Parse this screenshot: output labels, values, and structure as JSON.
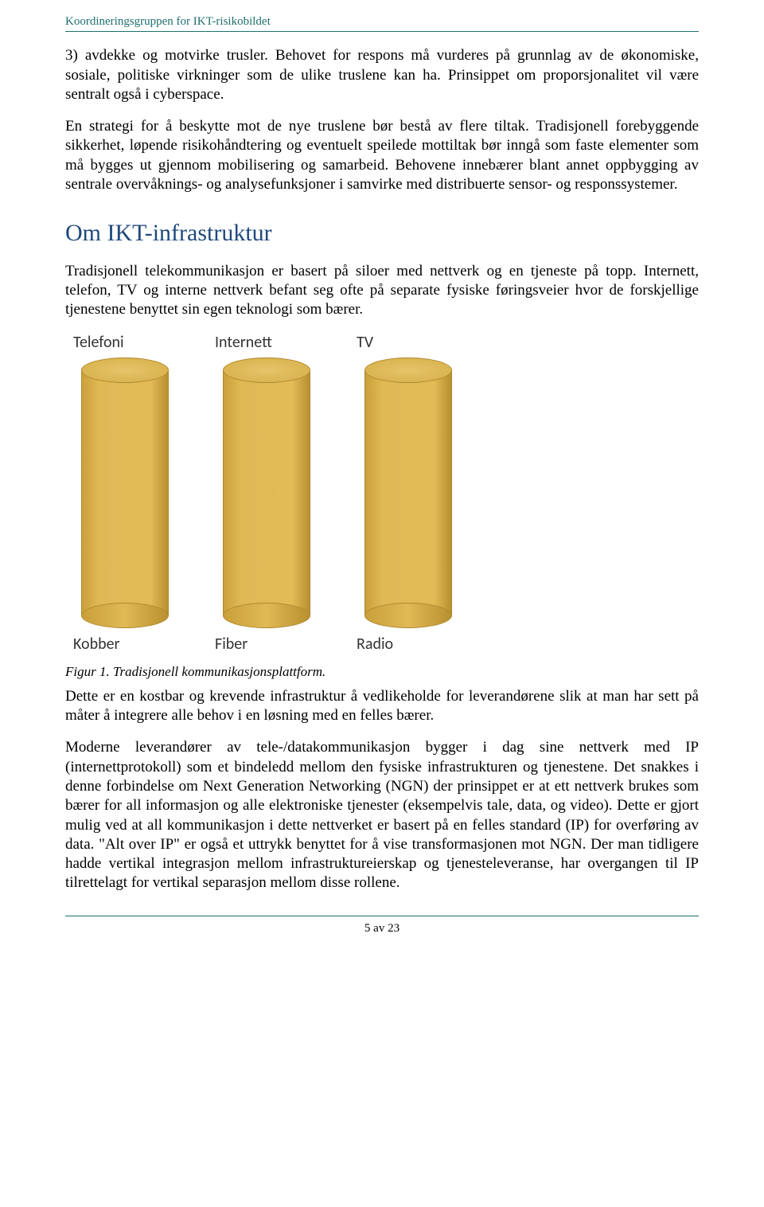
{
  "header": {
    "text": "Koordineringsgruppen for IKT-risikobildet"
  },
  "body": {
    "para1": "3) avdekke og motvirke trusler. Behovet for respons må vurderes på grunnlag av de økonomiske, sosiale, politiske virkninger som de ulike truslene kan ha. Prinsippet om proporsjonalitet vil være sentralt også i cyberspace.",
    "para2": "En strategi for å beskytte mot de nye truslene bør bestå av flere tiltak. Tradisjonell forebyggende sikkerhet, løpende risikohåndtering og eventuelt speilede mottiltak bør inngå som faste elementer som må bygges ut gjennom mobilisering og samarbeid. Behovene innebærer blant annet oppbygging av sentrale overvåknings- og analysefunksjoner i samvirke med distribuerte sensor- og responssystemer.",
    "section_title": "Om IKT-infrastruktur",
    "para3": "Tradisjonell telekommunikasjon er basert på siloer med nettverk og en tjeneste på topp. Internett, telefon, TV og interne nettverk befant seg ofte på separate fysiske føringsveier hvor de forskjellige tjenestene benyttet sin egen teknologi som bærer.",
    "caption": "Figur 1. Tradisjonell kommunikasjonsplattform.",
    "para4": "Dette er en kostbar og krevende infrastruktur å vedlikeholde for leverandørene slik at man har sett på måter å integrere alle behov i en løsning med en felles bærer.",
    "para5": "Moderne leverandører av tele-/datakommunikasjon bygger i dag sine nettverk med IP (internettprotokoll) som et bindeledd mellom den fysiske infrastrukturen og tjenestene. Det snakkes i denne forbindelse om Next Generation Networking (NGN) der prinsippet er at ett nettverk brukes som bærer for all informasjon og alle elektroniske tjenester (eksempelvis tale, data, og video). Dette er gjort mulig ved at all kommunikasjon i dette nettverket er basert på en felles standard (IP) for overføring av data. \"Alt over IP\" er også et uttrykk benyttet for å vise transformasjonen mot NGN. Der man tidligere hadde vertikal integrasjon mellom infrastruktureierskap og tjenesteleveranse, har overgangen til IP tilrettelagt for vertikal separasjon mellom disse rollene."
  },
  "figure": {
    "columns": [
      {
        "top": "Telefoni",
        "bottom": "Kobber"
      },
      {
        "top": "Internett",
        "bottom": "Fiber"
      },
      {
        "top": "TV",
        "bottom": "Radio"
      }
    ],
    "cylinder_color_light": "#e2bb57",
    "cylinder_color_dark": "#b8902f",
    "cylinder_border": "#b08a2e"
  },
  "footer": {
    "page_label": "5 av 23"
  }
}
